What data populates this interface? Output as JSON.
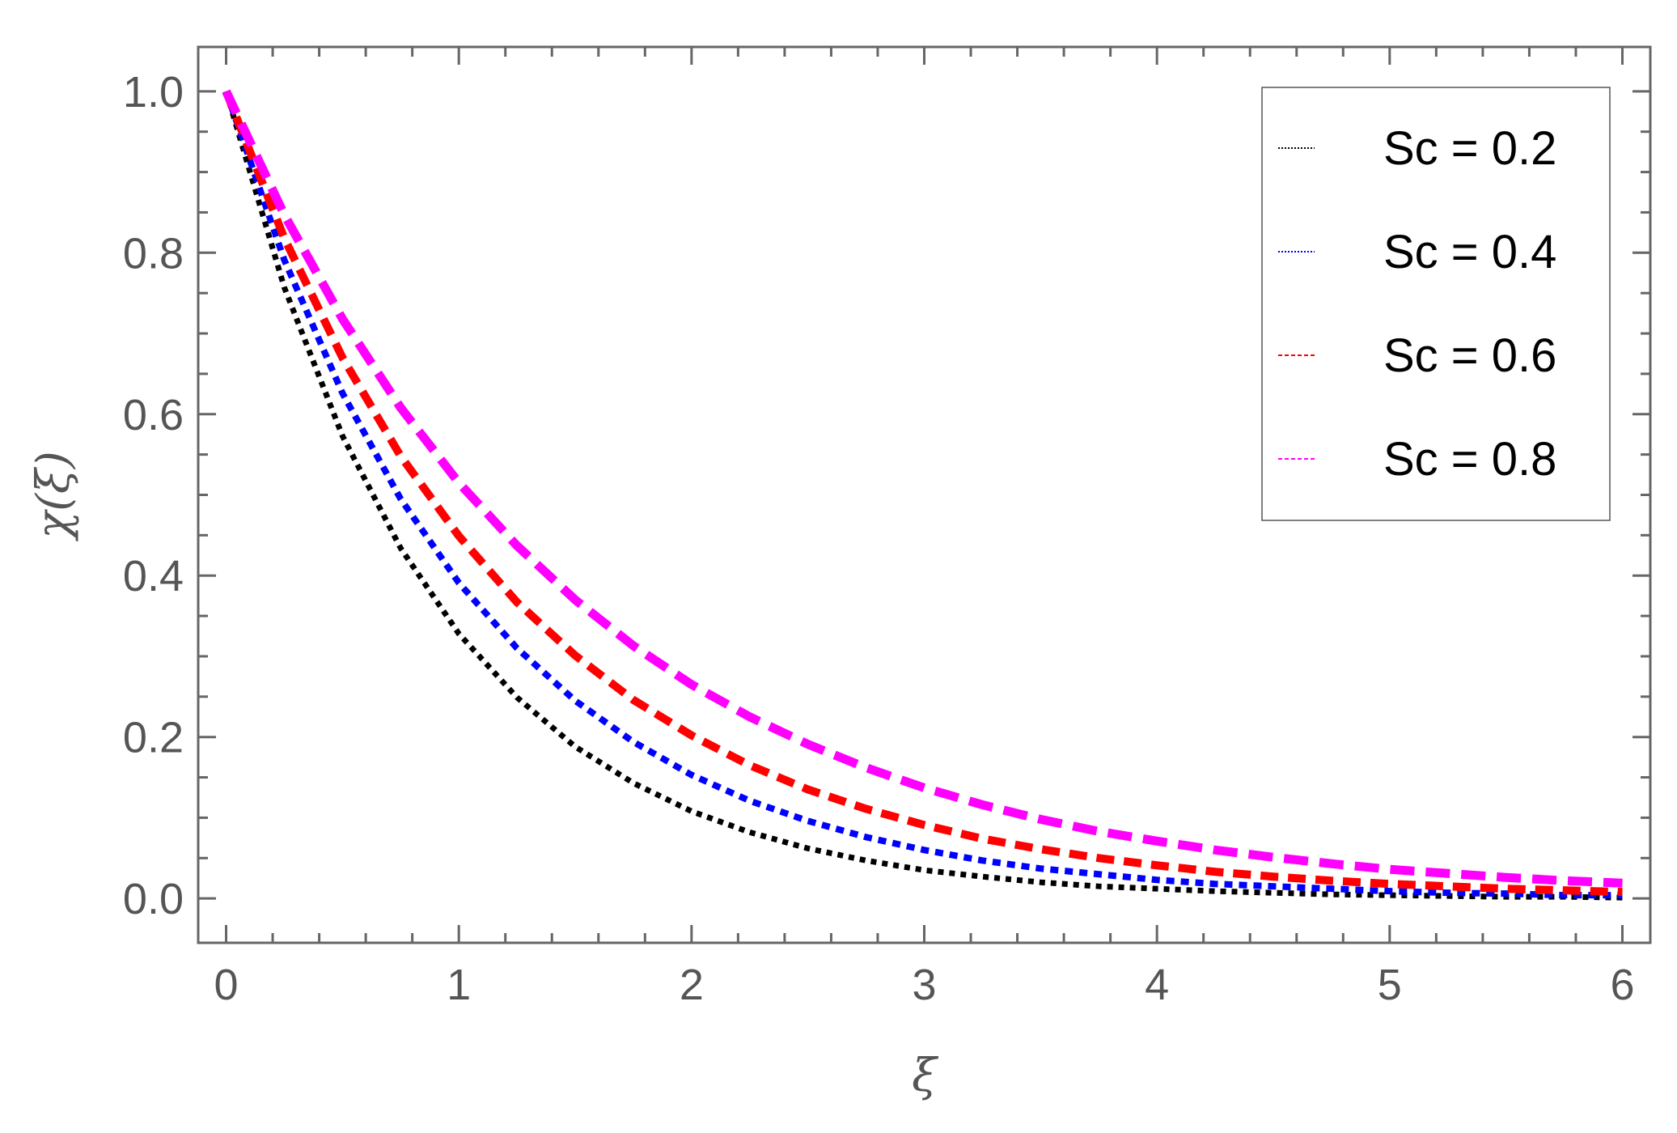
{
  "chart_data": {
    "type": "line",
    "title": "",
    "xlabel": "ξ",
    "ylabel": "χ(ξ)",
    "xlim": [
      -0.12,
      6.12
    ],
    "ylim": [
      -0.055,
      1.055
    ],
    "grid": false,
    "legend_position": "top-right",
    "x_ticks": [
      0,
      1,
      2,
      3,
      4,
      5,
      6
    ],
    "x_tick_labels": [
      "0",
      "1",
      "2",
      "3",
      "4",
      "5",
      "6"
    ],
    "y_ticks": [
      0.0,
      0.2,
      0.4,
      0.6,
      0.8,
      1.0
    ],
    "y_tick_labels": [
      "0.0",
      "0.2",
      "0.4",
      "0.6",
      "0.8",
      "1.0"
    ],
    "x": [
      0,
      0.25,
      0.5,
      0.75,
      1,
      1.25,
      1.5,
      1.75,
      2,
      2.25,
      2.5,
      2.75,
      3,
      3.25,
      3.5,
      3.75,
      4,
      4.25,
      4.5,
      4.75,
      5,
      5.25,
      5.5,
      5.75,
      6
    ],
    "series": [
      {
        "name": "Sc = 0.2",
        "color": "#000000",
        "style": "dotted",
        "values": [
          1.0,
          0.757,
          0.573,
          0.434,
          0.328,
          0.249,
          0.188,
          0.143,
          0.108,
          0.082,
          0.062,
          0.047,
          0.035,
          0.027,
          0.02,
          0.015,
          0.012,
          0.009,
          0.007,
          0.005,
          0.004,
          0.003,
          0.002,
          0.002,
          0.001
        ]
      },
      {
        "name": "Sc = 0.4",
        "color": "#0000ff",
        "style": "dotted",
        "values": [
          1.0,
          0.791,
          0.626,
          0.495,
          0.391,
          0.31,
          0.245,
          0.194,
          0.153,
          0.121,
          0.096,
          0.076,
          0.06,
          0.047,
          0.037,
          0.03,
          0.023,
          0.018,
          0.015,
          0.012,
          0.009,
          0.007,
          0.006,
          0.004,
          0.004
        ]
      },
      {
        "name": "Sc = 0.6",
        "color": "#ff0000",
        "style": "dashed",
        "values": [
          1.0,
          0.818,
          0.67,
          0.548,
          0.449,
          0.367,
          0.301,
          0.246,
          0.202,
          0.165,
          0.135,
          0.111,
          0.091,
          0.074,
          0.061,
          0.05,
          0.041,
          0.033,
          0.027,
          0.022,
          0.018,
          0.015,
          0.012,
          0.01,
          0.008
        ]
      },
      {
        "name": "Sc = 0.8",
        "color": "#ff00ff",
        "style": "dashed",
        "values": [
          1.0,
          0.847,
          0.718,
          0.608,
          0.515,
          0.437,
          0.37,
          0.313,
          0.265,
          0.225,
          0.191,
          0.162,
          0.137,
          0.116,
          0.098,
          0.083,
          0.071,
          0.06,
          0.051,
          0.043,
          0.036,
          0.031,
          0.026,
          0.022,
          0.019
        ]
      }
    ]
  }
}
